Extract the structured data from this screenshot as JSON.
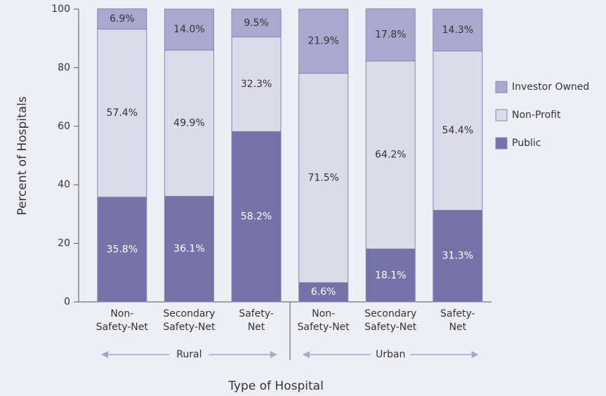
{
  "chart_data": {
    "type": "stacked_bar",
    "x_label": "Type of Hospital",
    "y_label": "Percent of Hospitals",
    "categories": [
      [
        "Non-",
        "Safety-Net"
      ],
      [
        "Secondary",
        "Safety-Net"
      ],
      [
        "Safety-",
        "Net"
      ],
      [
        "Non-",
        "Safety-Net"
      ],
      [
        "Secondary",
        "Safety-Net"
      ],
      [
        "Safety-",
        "Net"
      ]
    ],
    "groups": [
      "Rural",
      "Urban"
    ],
    "series": [
      {
        "name": "Public",
        "color": "#7472a8",
        "values": [
          35.8,
          36.1,
          58.2,
          6.6,
          18.1,
          31.3
        ],
        "value_labels": [
          "35.8%",
          "36.1%",
          "58.2%",
          "6.6%",
          "18.1%",
          "31.3%"
        ]
      },
      {
        "name": "Non-Profit",
        "color": "#dcdbea",
        "values": [
          57.4,
          49.9,
          32.3,
          71.5,
          64.2,
          54.4
        ],
        "value_labels": [
          "57.4%",
          "49.9%",
          "32.3%",
          "71.5%",
          "64.2%",
          "54.4%"
        ]
      },
      {
        "name": "Investor Owned",
        "color": "#aaa8cf",
        "values": [
          6.9,
          14.0,
          9.5,
          21.9,
          17.8,
          14.3
        ],
        "value_labels": [
          "6.9%",
          "14.0%",
          "9.5%",
          "21.9%",
          "17.8%",
          "14.3%"
        ]
      }
    ],
    "ylim": [
      0,
      100
    ],
    "yticks": [
      0,
      20,
      40,
      60,
      80,
      100
    ]
  }
}
